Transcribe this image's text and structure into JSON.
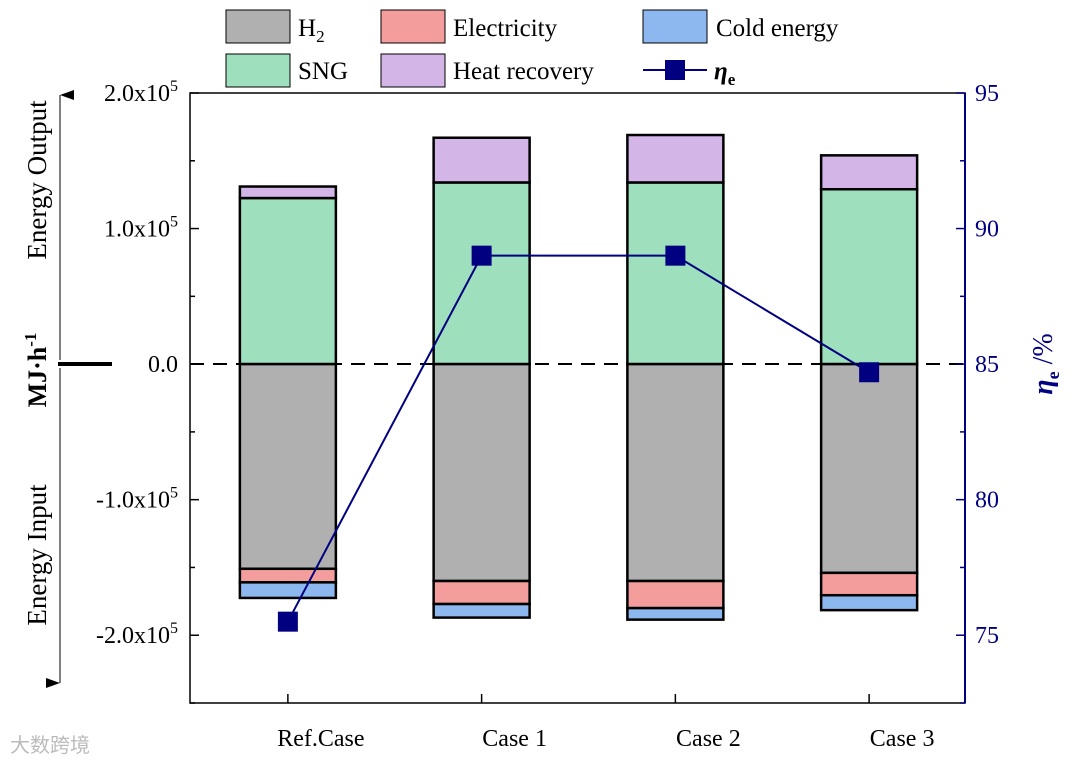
{
  "chart_data": {
    "type": "bar",
    "subtype": "stacked-bar-with-line",
    "categories": [
      "Ref.Case",
      "Case 1",
      "Case 2",
      "Case 3"
    ],
    "left_axis": {
      "ylim": [
        -250000,
        200000
      ],
      "ticks": [
        200000,
        100000,
        0,
        -100000,
        -200000
      ],
      "tick_labels": [
        "2.0x10",
        "1.0x10",
        "0.0",
        "-1.0x10",
        "-2.0x10"
      ],
      "tick_exponents": [
        "5",
        "5",
        "",
        "5",
        "5"
      ],
      "unit_label": "MJ·h",
      "unit_exponent": "-1",
      "output_label": "Energy Output",
      "input_label": "Energy Input"
    },
    "right_axis": {
      "ylim": [
        72.5,
        95
      ],
      "ticks": [
        75,
        80,
        85,
        90,
        95
      ],
      "tick_labels": [
        "75",
        "80",
        "85",
        "90",
        "95"
      ],
      "label": "η",
      "label_sub": "e",
      "label_suffix": " /%",
      "color": "#000080"
    },
    "output_series": [
      {
        "name": "SNG",
        "color": "#9ee0bd",
        "values": [
          122500,
          134000,
          134000,
          129000
        ]
      },
      {
        "name": "Heat recovery",
        "color": "#d3b5e8",
        "values": [
          8500,
          33000,
          35000,
          25000
        ]
      }
    ],
    "input_series": [
      {
        "name": "H",
        "sub": "2",
        "color": "#b0b0b0",
        "values": [
          -151000,
          -160000,
          -160000,
          -154000
        ]
      },
      {
        "name": "Electricity",
        "color": "#f49d9d",
        "values": [
          -10000,
          -17000,
          -20000,
          -16500
        ]
      },
      {
        "name": "Cold energy",
        "color": "#8db8ef",
        "values": [
          -11500,
          -10000,
          -8500,
          -11000
        ]
      }
    ],
    "line_series": {
      "name": "η",
      "sub": "e",
      "color": "#000080",
      "values": [
        75.5,
        89.0,
        89.0,
        84.7
      ]
    },
    "zero_line": "dashed",
    "legend_placement": "top"
  },
  "watermark": "大数跨境"
}
